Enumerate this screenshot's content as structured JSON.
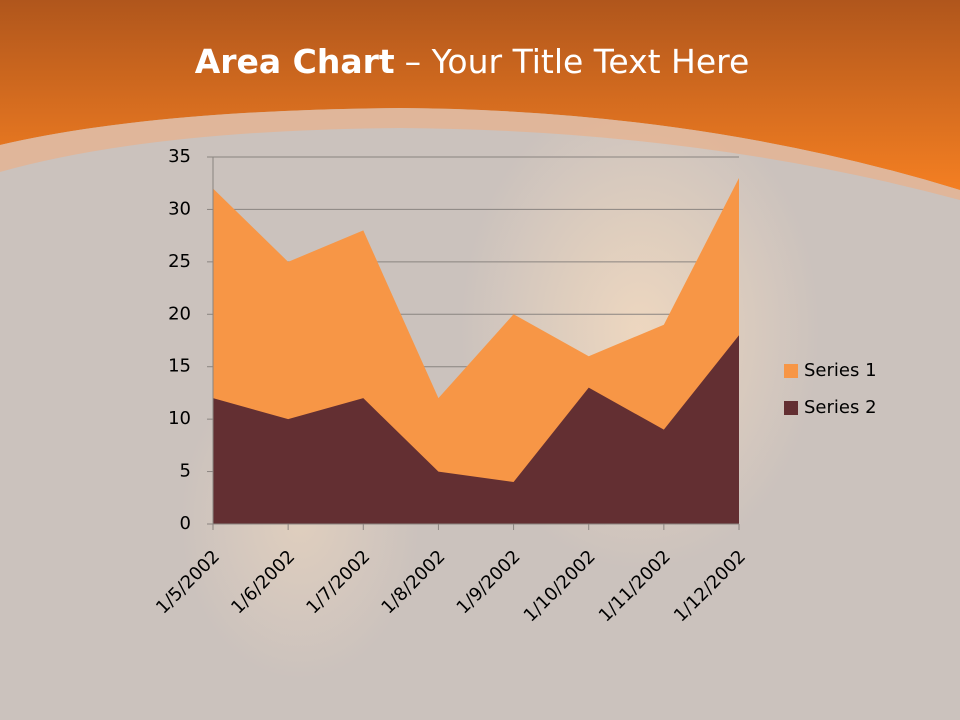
{
  "slide": {
    "title_emphasis": "Area Chart",
    "title_rest": "– Your Title Text Here"
  },
  "chart_data": {
    "type": "area",
    "categories": [
      "1/5/2002",
      "1/6/2002",
      "1/7/2002",
      "1/8/2002",
      "1/9/2002",
      "1/10/2002",
      "1/11/2002",
      "1/12/2002"
    ],
    "series": [
      {
        "name": "Series 1",
        "color": "#f79646",
        "values": [
          32,
          25,
          28,
          12,
          20,
          16,
          19,
          33
        ]
      },
      {
        "name": "Series 2",
        "color": "#632f32",
        "values": [
          12,
          10,
          12,
          5,
          4,
          13,
          9,
          18
        ]
      }
    ],
    "ylim": [
      0,
      35
    ],
    "yticks": [
      0,
      5,
      10,
      15,
      20,
      25,
      30,
      35
    ],
    "grid": true,
    "legend": "right"
  }
}
